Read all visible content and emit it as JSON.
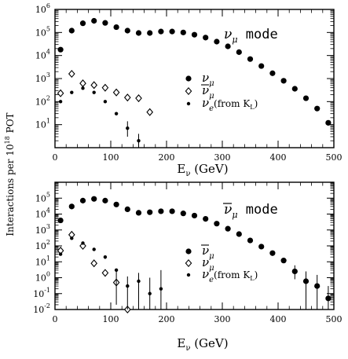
{
  "ylabel": "Interactions per 10",
  "ylabel_exp": "18",
  "ylabel_unit": " POT",
  "chart_data": [
    {
      "type": "scatter",
      "scale": "log",
      "panel": "top",
      "mode_label": {
        "sym": "ν",
        "sub": "μ",
        "bar": false,
        "text": "mode"
      },
      "x_label": {
        "sym": "E",
        "sub": "ν",
        "unit": "(GeV)"
      },
      "xlim": [
        0,
        500
      ],
      "ylim": [
        1,
        1000000
      ],
      "x_ticks": [
        0,
        100,
        200,
        300,
        400,
        500
      ],
      "y_ticks": [
        {
          "value": 1000000,
          "base": "10",
          "exp": "6"
        },
        {
          "value": 100000,
          "base": "10",
          "exp": "5"
        },
        {
          "value": 10000,
          "base": "10",
          "exp": "4"
        },
        {
          "value": 1000,
          "base": "10",
          "exp": "3"
        },
        {
          "value": 100,
          "base": "10",
          "exp": "2"
        },
        {
          "value": 10,
          "base": "10",
          "exp": "1"
        }
      ],
      "series": [
        {
          "name": "ν_μ",
          "legend": {
            "sym": "ν",
            "sub": "μ",
            "bar": false,
            "suffix": ""
          },
          "marker": "filled-circle",
          "points": [
            [
              10,
              18000
            ],
            [
              30,
              120000
            ],
            [
              50,
              250000
            ],
            [
              70,
              320000
            ],
            [
              90,
              260000
            ],
            [
              110,
              170000
            ],
            [
              130,
              120000
            ],
            [
              150,
              95000
            ],
            [
              170,
              95000
            ],
            [
              190,
              110000
            ],
            [
              210,
              110000
            ],
            [
              230,
              100000
            ],
            [
              250,
              80000
            ],
            [
              270,
              60000
            ],
            [
              290,
              40000
            ],
            [
              310,
              25000
            ],
            [
              330,
              14000
            ],
            [
              350,
              7000
            ],
            [
              370,
              3500
            ],
            [
              390,
              1700
            ],
            [
              410,
              800
            ],
            [
              430,
              360
            ],
            [
              450,
              140
            ],
            [
              470,
              50
            ],
            [
              490,
              12
            ]
          ]
        },
        {
          "name": "anti-ν_μ",
          "legend": {
            "sym": "ν",
            "sub": "μ",
            "bar": true,
            "suffix": ""
          },
          "marker": "open-diamond",
          "points": [
            [
              10,
              230
            ],
            [
              30,
              1600
            ],
            [
              50,
              620
            ],
            [
              70,
              520
            ],
            [
              90,
              400
            ],
            [
              110,
              250
            ],
            [
              130,
              150
            ],
            [
              150,
              140
            ],
            [
              170,
              35
            ]
          ]
        },
        {
          "name": "ν_e (from K_L)",
          "legend": {
            "sym": "ν",
            "sub": "e",
            "bar": false,
            "suffix": "(from K",
            "suffix_sub": "L",
            "suffix_end": ")"
          },
          "marker": "small-filled-circle",
          "points": [
            [
              10,
              100
            ],
            [
              30,
              250
            ],
            [
              50,
              380
            ],
            [
              70,
              250
            ],
            [
              90,
              100
            ],
            [
              110,
              30
            ],
            [
              130,
              7
            ],
            [
              150,
              2
            ]
          ],
          "err_hi": [
            null,
            null,
            null,
            null,
            null,
            null,
            14,
            4
          ],
          "err_lo": [
            null,
            null,
            null,
            null,
            null,
            null,
            3,
            1
          ]
        }
      ]
    },
    {
      "type": "scatter",
      "scale": "log",
      "panel": "bottom",
      "mode_label": {
        "sym": "ν",
        "sub": "μ",
        "bar": true,
        "text": "mode"
      },
      "x_label": {
        "sym": "E",
        "sub": "ν",
        "unit": "(GeV)"
      },
      "xlim": [
        0,
        500
      ],
      "ylim": [
        0.01,
        1000000
      ],
      "x_ticks": [
        0,
        100,
        200,
        300,
        400,
        500
      ],
      "y_ticks": [
        {
          "value": 100000,
          "base": "10",
          "exp": "5"
        },
        {
          "value": 10000,
          "base": "10",
          "exp": "4"
        },
        {
          "value": 1000,
          "base": "10",
          "exp": "3"
        },
        {
          "value": 100,
          "base": "10",
          "exp": "2"
        },
        {
          "value": 10,
          "base": "10",
          "exp": "1"
        },
        {
          "value": 1,
          "base": "10",
          "exp": "0"
        },
        {
          "value": 0.1,
          "base": "10",
          "exp": "-1"
        },
        {
          "value": 0.01,
          "base": "10",
          "exp": "-2"
        }
      ],
      "series": [
        {
          "name": "anti-ν_μ",
          "legend": {
            "sym": "ν",
            "sub": "μ",
            "bar": true,
            "suffix": ""
          },
          "marker": "filled-circle",
          "points": [
            [
              10,
              4000
            ],
            [
              30,
              30000
            ],
            [
              50,
              70000
            ],
            [
              70,
              90000
            ],
            [
              90,
              70000
            ],
            [
              110,
              40000
            ],
            [
              130,
              20000
            ],
            [
              150,
              12000
            ],
            [
              170,
              13000
            ],
            [
              190,
              15000
            ],
            [
              210,
              15000
            ],
            [
              230,
              11000
            ],
            [
              250,
              8000
            ],
            [
              270,
              5000
            ],
            [
              290,
              2500
            ],
            [
              310,
              1200
            ],
            [
              330,
              550
            ],
            [
              350,
              220
            ],
            [
              370,
              90
            ],
            [
              390,
              35
            ],
            [
              410,
              12
            ],
            [
              430,
              2.5
            ],
            [
              450,
              0.6
            ],
            [
              470,
              0.3
            ],
            [
              490,
              0.05
            ]
          ],
          "err_hi": [
            null,
            null,
            null,
            null,
            null,
            null,
            null,
            null,
            null,
            null,
            null,
            null,
            null,
            null,
            null,
            null,
            null,
            null,
            null,
            null,
            null,
            6,
            2.5,
            1.5,
            0.3
          ],
          "err_lo": [
            null,
            null,
            null,
            null,
            null,
            null,
            null,
            null,
            null,
            null,
            null,
            null,
            null,
            null,
            null,
            null,
            null,
            null,
            null,
            null,
            null,
            0.8,
            0.008,
            0.008,
            0.008
          ]
        },
        {
          "name": "ν_μ",
          "legend": {
            "sym": "ν",
            "sub": "μ",
            "bar": false,
            "suffix": ""
          },
          "marker": "open-diamond",
          "points": [
            [
              10,
              50
            ],
            [
              30,
              500
            ],
            [
              50,
              100
            ],
            [
              70,
              8
            ],
            [
              90,
              2
            ],
            [
              110,
              0.5
            ],
            [
              130,
              0.01
            ]
          ]
        },
        {
          "name": "ν_e (from K_L)",
          "legend": {
            "sym": "ν",
            "sub": "e",
            "bar": false,
            "suffix": "(from K",
            "suffix_sub": "L",
            "suffix_end": ")"
          },
          "marker": "small-filled-circle",
          "points": [
            [
              10,
              30
            ],
            [
              30,
              300
            ],
            [
              50,
              150
            ],
            [
              70,
              60
            ],
            [
              90,
              20
            ],
            [
              110,
              3
            ],
            [
              130,
              0.3
            ],
            [
              150,
              0.6
            ],
            [
              170,
              0.1
            ],
            [
              190,
              0.2
            ]
          ],
          "err_hi": [
            null,
            null,
            null,
            null,
            15,
            3,
            1.2,
            2,
            1,
            3
          ],
          "err_lo": [
            null,
            null,
            null,
            null,
            null,
            0.02,
            0.008,
            0.008,
            0.008,
            0.008
          ]
        }
      ]
    }
  ]
}
